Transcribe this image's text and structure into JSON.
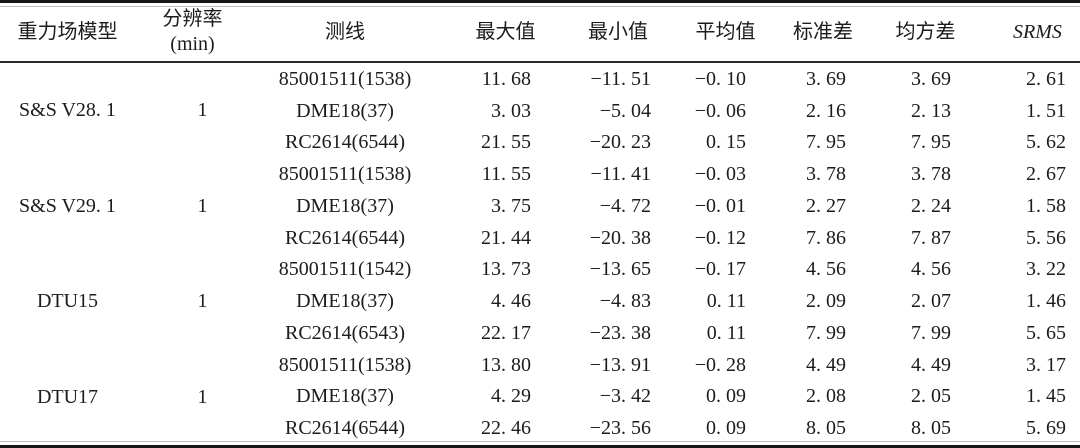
{
  "colors": {
    "background": "#ffffff",
    "text": "#1c1c1c",
    "rule": "#161616"
  },
  "header": {
    "columns": [
      {
        "label": "重力场模型"
      },
      {
        "label": "分辨率",
        "sub": "(min)"
      },
      {
        "label": "测线"
      },
      {
        "label": "最大值"
      },
      {
        "label": "最小值"
      },
      {
        "label": "平均值"
      },
      {
        "label": "标准差"
      },
      {
        "label": "均方差"
      },
      {
        "label": "SRMS"
      }
    ]
  },
  "groups": [
    {
      "model": "S&S V28. 1",
      "resolution": "1",
      "rows": [
        {
          "line": "85001511(1538)",
          "values": [
            "11. 68",
            "−11. 51",
            "−0. 10",
            "3. 69",
            "3. 69",
            "2. 61"
          ]
        },
        {
          "line": "DME18(37)",
          "values": [
            "3. 03",
            "−5. 04",
            "−0. 06",
            "2. 16",
            "2. 13",
            "1. 51"
          ]
        },
        {
          "line": "RC2614(6544)",
          "values": [
            "21. 55",
            "−20. 23",
            "0. 15",
            "7. 95",
            "7. 95",
            "5. 62"
          ]
        }
      ]
    },
    {
      "model": "S&S V29. 1",
      "resolution": "1",
      "rows": [
        {
          "line": "85001511(1538)",
          "values": [
            "11. 55",
            "−11. 41",
            "−0. 03",
            "3. 78",
            "3. 78",
            "2. 67"
          ]
        },
        {
          "line": "DME18(37)",
          "values": [
            "3. 75",
            "−4. 72",
            "−0. 01",
            "2. 27",
            "2. 24",
            "1. 58"
          ]
        },
        {
          "line": "RC2614(6544)",
          "values": [
            "21. 44",
            "−20. 38",
            "−0. 12",
            "7. 86",
            "7. 87",
            "5. 56"
          ]
        }
      ]
    },
    {
      "model": "DTU15",
      "resolution": "1",
      "rows": [
        {
          "line": "85001511(1542)",
          "values": [
            "13. 73",
            "−13. 65",
            "−0. 17",
            "4. 56",
            "4. 56",
            "3. 22"
          ]
        },
        {
          "line": "DME18(37)",
          "values": [
            "4. 46",
            "−4. 83",
            "0. 11",
            "2. 09",
            "2. 07",
            "1. 46"
          ]
        },
        {
          "line": "RC2614(6543)",
          "values": [
            "22. 17",
            "−23. 38",
            "0. 11",
            "7. 99",
            "7. 99",
            "5. 65"
          ]
        }
      ]
    },
    {
      "model": "DTU17",
      "resolution": "1",
      "rows": [
        {
          "line": "85001511(1538)",
          "values": [
            "13. 80",
            "−13. 91",
            "−0. 28",
            "4. 49",
            "4. 49",
            "3. 17"
          ]
        },
        {
          "line": "DME18(37)",
          "values": [
            "4. 29",
            "−3. 42",
            "0. 09",
            "2. 08",
            "2. 05",
            "1. 45"
          ]
        },
        {
          "line": "RC2614(6544)",
          "values": [
            "22. 46",
            "−23. 56",
            "0. 09",
            "8. 05",
            "8. 05",
            "5. 69"
          ]
        }
      ]
    }
  ]
}
